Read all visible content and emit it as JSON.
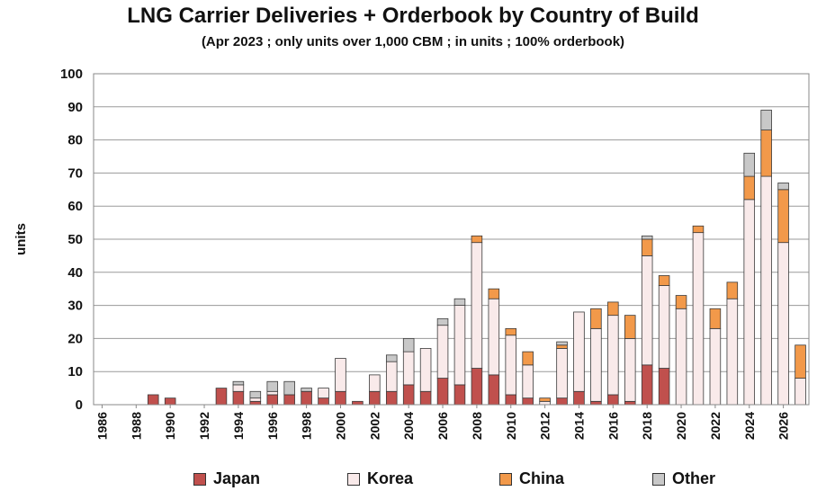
{
  "chart_data": {
    "type": "bar",
    "stacked": true,
    "title": "LNG Carrier Deliveries + Orderbook by Country of Build",
    "subtitle": "(Apr 2023 ; only units over 1,000 CBM ; in units ; 100% orderbook)",
    "xlabel": "",
    "ylabel": "units",
    "ylim": [
      0,
      100
    ],
    "yticks": [
      0,
      10,
      20,
      30,
      40,
      50,
      60,
      70,
      80,
      90,
      100
    ],
    "categories": [
      1986,
      1987,
      1988,
      1989,
      1990,
      1991,
      1992,
      1993,
      1994,
      1995,
      1996,
      1997,
      1998,
      1999,
      2000,
      2001,
      2002,
      2003,
      2004,
      2005,
      2006,
      2007,
      2008,
      2009,
      2010,
      2011,
      2012,
      2013,
      2014,
      2015,
      2016,
      2017,
      2018,
      2019,
      2020,
      2021,
      2022,
      2023,
      2024,
      2025,
      2026,
      2027
    ],
    "xtick_labels": [
      "1986",
      "1988",
      "1990",
      "1992",
      "1994",
      "1996",
      "1998",
      "2000",
      "2002",
      "2004",
      "2006",
      "2008",
      "2010",
      "2012",
      "2014",
      "2016",
      "2018",
      "2020",
      "2022",
      "2024",
      "2026"
    ],
    "series": [
      {
        "name": "Japan",
        "color": "#c0504d",
        "values": [
          0,
          0,
          0,
          3,
          2,
          0,
          0,
          5,
          4,
          1,
          3,
          3,
          4,
          2,
          4,
          1,
          4,
          4,
          6,
          4,
          8,
          6,
          11,
          9,
          3,
          2,
          0,
          2,
          4,
          1,
          3,
          1,
          12,
          11,
          0,
          0,
          0,
          0,
          0,
          0,
          0,
          0
        ]
      },
      {
        "name": "Korea",
        "color": "#f9eaea",
        "values": [
          0,
          0,
          0,
          0,
          0,
          0,
          0,
          0,
          2,
          1,
          1,
          0,
          0,
          3,
          10,
          0,
          5,
          9,
          10,
          13,
          16,
          24,
          38,
          23,
          18,
          10,
          1,
          15,
          24,
          22,
          24,
          19,
          33,
          25,
          29,
          52,
          23,
          32,
          62,
          69,
          49,
          8
        ]
      },
      {
        "name": "China",
        "color": "#f2994a",
        "values": [
          0,
          0,
          0,
          0,
          0,
          0,
          0,
          0,
          0,
          0,
          0,
          0,
          0,
          0,
          0,
          0,
          0,
          0,
          0,
          0,
          0,
          0,
          2,
          3,
          2,
          4,
          1,
          1,
          0,
          6,
          4,
          7,
          5,
          3,
          4,
          2,
          6,
          5,
          7,
          14,
          16,
          10
        ]
      },
      {
        "name": "Other",
        "color": "#c8c8c8",
        "values": [
          0,
          0,
          0,
          0,
          0,
          0,
          0,
          0,
          1,
          2,
          3,
          4,
          1,
          0,
          0,
          0,
          0,
          2,
          4,
          0,
          2,
          2,
          0,
          0,
          0,
          0,
          0,
          1,
          0,
          0,
          0,
          0,
          1,
          0,
          0,
          0,
          0,
          0,
          7,
          6,
          2,
          0
        ]
      }
    ],
    "grid": true,
    "legend_position": "bottom"
  }
}
